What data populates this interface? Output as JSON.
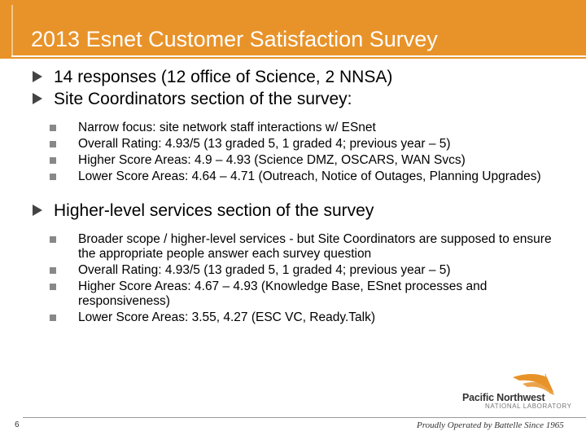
{
  "slide": {
    "title": "2013 Esnet Customer Satisfaction Survey",
    "page_number": "6",
    "colors": {
      "header": "#e8932a",
      "bullet_arrow": "#444444",
      "bullet_square": "#888888"
    }
  },
  "items": [
    {
      "text": "14 responses (12 office of Science, 2 NNSA)"
    },
    {
      "text": "Site Coordinators section of the survey:",
      "subitems": [
        "Narrow focus: site network staff interactions w/ ESnet",
        "Overall Rating: 4.93/5 (13 graded 5, 1 graded 4; previous year – 5)",
        "Higher Score Areas: 4.9 – 4.93 (Science DMZ, OSCARS, WAN Svcs)",
        "Lower Score Areas: 4.64 – 4.71 (Outreach, Notice of Outages, Planning Upgrades)"
      ]
    },
    {
      "text": "Higher-level services section of the survey",
      "subitems": [
        "Broader scope / higher-level services - but Site Coordinators are supposed to ensure the appropriate people answer each survey question",
        "Overall Rating: 4.93/5 (13 graded 5, 1 graded 4; previous year – 5)",
        "Higher Score Areas: 4.67 – 4.93 (Knowledge Base, ESnet processes and responsiveness)",
        "Lower Score Areas: 3.55, 4.27 (ESC VC, Ready.Talk)"
      ]
    }
  ],
  "branding": {
    "org_name": "Pacific Northwest",
    "org_sub": "NATIONAL LABORATORY",
    "tagline": "Proudly Operated by Battelle Since 1965",
    "logo_icon": "pnnl-logo-icon"
  }
}
